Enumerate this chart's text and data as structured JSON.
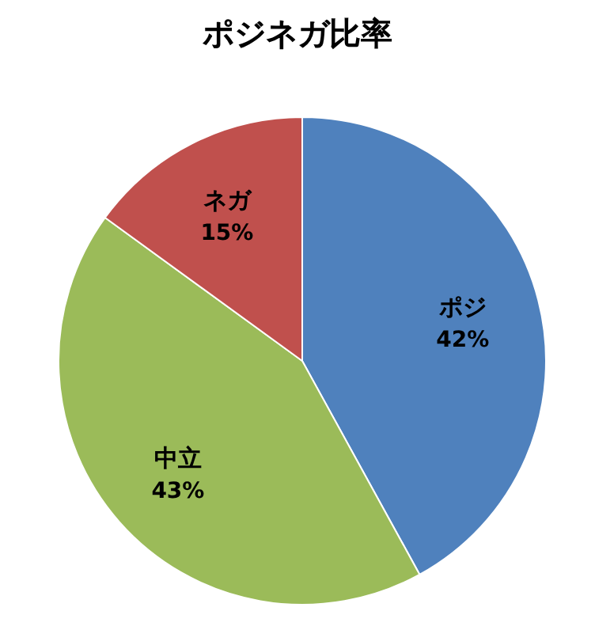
{
  "chart_data": {
    "type": "pie",
    "title": "ポジネガ比率",
    "categories": [
      "ポジ",
      "中立",
      "ネガ"
    ],
    "values": [
      42,
      43,
      15
    ],
    "colors": [
      "#4f81bd",
      "#9bbb59",
      "#c0504d"
    ],
    "value_labels": [
      "42%",
      "43%",
      "15%"
    ]
  }
}
